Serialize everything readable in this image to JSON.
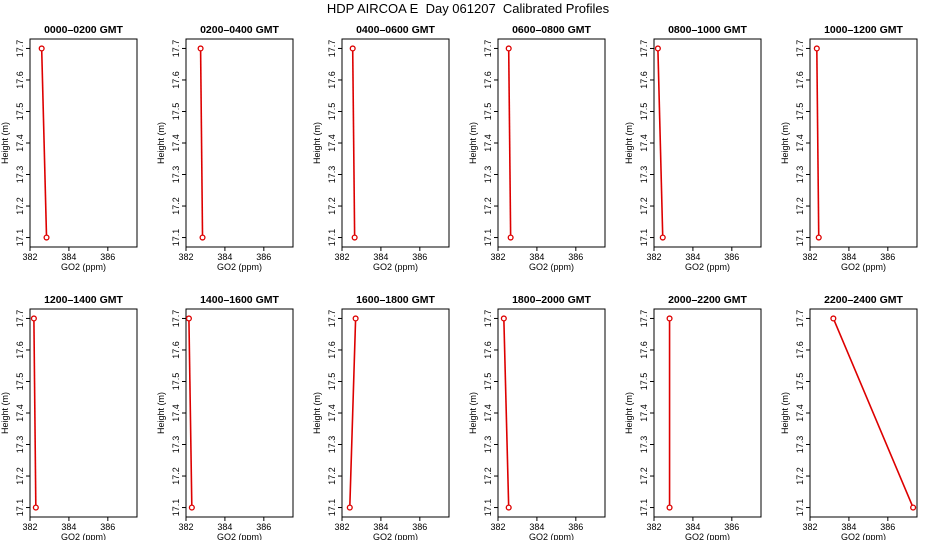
{
  "title": "HDP AIRCOA E  Day 061207  Calibrated Profiles",
  "colors": {
    "series": "#dd0000",
    "axis": "#000000"
  },
  "chart_data": [
    {
      "type": "line",
      "title": "0000–0200 GMT",
      "xlabel": "GO2 (ppm)",
      "ylabel": "Height (m)",
      "xlim": [
        382,
        387.5
      ],
      "ylim": [
        17.07,
        17.73
      ],
      "xticks": [
        382,
        384,
        386
      ],
      "yticks": [
        17.1,
        17.2,
        17.3,
        17.4,
        17.5,
        17.6,
        17.7
      ],
      "series": [
        {
          "x": [
            382.6,
            382.85
          ],
          "y": [
            17.7,
            17.1
          ]
        }
      ]
    },
    {
      "type": "line",
      "title": "0200–0400 GMT",
      "xlabel": "GO2 (ppm)",
      "ylabel": "Height (m)",
      "xlim": [
        382,
        387.5
      ],
      "ylim": [
        17.07,
        17.73
      ],
      "xticks": [
        382,
        384,
        386
      ],
      "yticks": [
        17.1,
        17.2,
        17.3,
        17.4,
        17.5,
        17.6,
        17.7
      ],
      "series": [
        {
          "x": [
            382.75,
            382.85
          ],
          "y": [
            17.7,
            17.1
          ]
        }
      ]
    },
    {
      "type": "line",
      "title": "0400–0600 GMT",
      "xlabel": "GO2 (ppm)",
      "ylabel": "Height (m)",
      "xlim": [
        382,
        387.5
      ],
      "ylim": [
        17.07,
        17.73
      ],
      "xticks": [
        382,
        384,
        386
      ],
      "yticks": [
        17.1,
        17.2,
        17.3,
        17.4,
        17.5,
        17.6,
        17.7
      ],
      "series": [
        {
          "x": [
            382.55,
            382.65
          ],
          "y": [
            17.7,
            17.1
          ]
        }
      ]
    },
    {
      "type": "line",
      "title": "0600–0800 GMT",
      "xlabel": "GO2 (ppm)",
      "ylabel": "Height (m)",
      "xlim": [
        382,
        387.5
      ],
      "ylim": [
        17.07,
        17.73
      ],
      "xticks": [
        382,
        384,
        386
      ],
      "yticks": [
        17.1,
        17.2,
        17.3,
        17.4,
        17.5,
        17.6,
        17.7
      ],
      "series": [
        {
          "x": [
            382.55,
            382.65
          ],
          "y": [
            17.7,
            17.1
          ]
        }
      ]
    },
    {
      "type": "line",
      "title": "0800–1000 GMT",
      "xlabel": "GO2 (ppm)",
      "ylabel": "Height (m)",
      "xlim": [
        382,
        387.5
      ],
      "ylim": [
        17.07,
        17.73
      ],
      "xticks": [
        382,
        384,
        386
      ],
      "yticks": [
        17.1,
        17.2,
        17.3,
        17.4,
        17.5,
        17.6,
        17.7
      ],
      "series": [
        {
          "x": [
            382.2,
            382.45
          ],
          "y": [
            17.7,
            17.1
          ]
        }
      ]
    },
    {
      "type": "line",
      "title": "1000–1200 GMT",
      "xlabel": "GO2 (ppm)",
      "ylabel": "Height (m)",
      "xlim": [
        382,
        387.5
      ],
      "ylim": [
        17.07,
        17.73
      ],
      "xticks": [
        382,
        384,
        386
      ],
      "yticks": [
        17.1,
        17.2,
        17.3,
        17.4,
        17.5,
        17.6,
        17.7
      ],
      "series": [
        {
          "x": [
            382.35,
            382.45
          ],
          "y": [
            17.7,
            17.1
          ]
        }
      ]
    },
    {
      "type": "line",
      "title": "1200–1400 GMT",
      "xlabel": "GO2 (ppm)",
      "ylabel": "Height (m)",
      "xlim": [
        382,
        387.5
      ],
      "ylim": [
        17.07,
        17.73
      ],
      "xticks": [
        382,
        384,
        386
      ],
      "yticks": [
        17.1,
        17.2,
        17.3,
        17.4,
        17.5,
        17.6,
        17.7
      ],
      "series": [
        {
          "x": [
            382.2,
            382.3
          ],
          "y": [
            17.7,
            17.1
          ]
        }
      ]
    },
    {
      "type": "line",
      "title": "1400–1600 GMT",
      "xlabel": "GO2 (ppm)",
      "ylabel": "Height (m)",
      "xlim": [
        382,
        387.5
      ],
      "ylim": [
        17.07,
        17.73
      ],
      "xticks": [
        382,
        384,
        386
      ],
      "yticks": [
        17.1,
        17.2,
        17.3,
        17.4,
        17.5,
        17.6,
        17.7
      ],
      "series": [
        {
          "x": [
            382.15,
            382.3
          ],
          "y": [
            17.7,
            17.1
          ]
        }
      ]
    },
    {
      "type": "line",
      "title": "1600–1800 GMT",
      "xlabel": "GO2 (ppm)",
      "ylabel": "Height (m)",
      "xlim": [
        382,
        387.5
      ],
      "ylim": [
        17.07,
        17.73
      ],
      "xticks": [
        382,
        384,
        386
      ],
      "yticks": [
        17.1,
        17.2,
        17.3,
        17.4,
        17.5,
        17.6,
        17.7
      ],
      "series": [
        {
          "x": [
            382.7,
            382.4
          ],
          "y": [
            17.7,
            17.1
          ]
        }
      ]
    },
    {
      "type": "line",
      "title": "1800–2000 GMT",
      "xlabel": "GO2 (ppm)",
      "ylabel": "Height (m)",
      "xlim": [
        382,
        387.5
      ],
      "ylim": [
        17.07,
        17.73
      ],
      "xticks": [
        382,
        384,
        386
      ],
      "yticks": [
        17.1,
        17.2,
        17.3,
        17.4,
        17.5,
        17.6,
        17.7
      ],
      "series": [
        {
          "x": [
            382.3,
            382.55
          ],
          "y": [
            17.7,
            17.1
          ]
        }
      ]
    },
    {
      "type": "line",
      "title": "2000–2200 GMT",
      "xlabel": "GO2 (ppm)",
      "ylabel": "Height (m)",
      "xlim": [
        382,
        387.5
      ],
      "ylim": [
        17.07,
        17.73
      ],
      "xticks": [
        382,
        384,
        386
      ],
      "yticks": [
        17.1,
        17.2,
        17.3,
        17.4,
        17.5,
        17.6,
        17.7
      ],
      "series": [
        {
          "x": [
            382.8,
            382.8
          ],
          "y": [
            17.7,
            17.1
          ]
        }
      ]
    },
    {
      "type": "line",
      "title": "2200–2400 GMT",
      "xlabel": "GO2 (ppm)",
      "ylabel": "Height (m)",
      "xlim": [
        382,
        387.5
      ],
      "ylim": [
        17.07,
        17.73
      ],
      "xticks": [
        382,
        384,
        386
      ],
      "yticks": [
        17.1,
        17.2,
        17.3,
        17.4,
        17.5,
        17.6,
        17.7
      ],
      "series": [
        {
          "x": [
            383.2,
            387.3
          ],
          "y": [
            17.7,
            17.1
          ]
        }
      ]
    }
  ]
}
